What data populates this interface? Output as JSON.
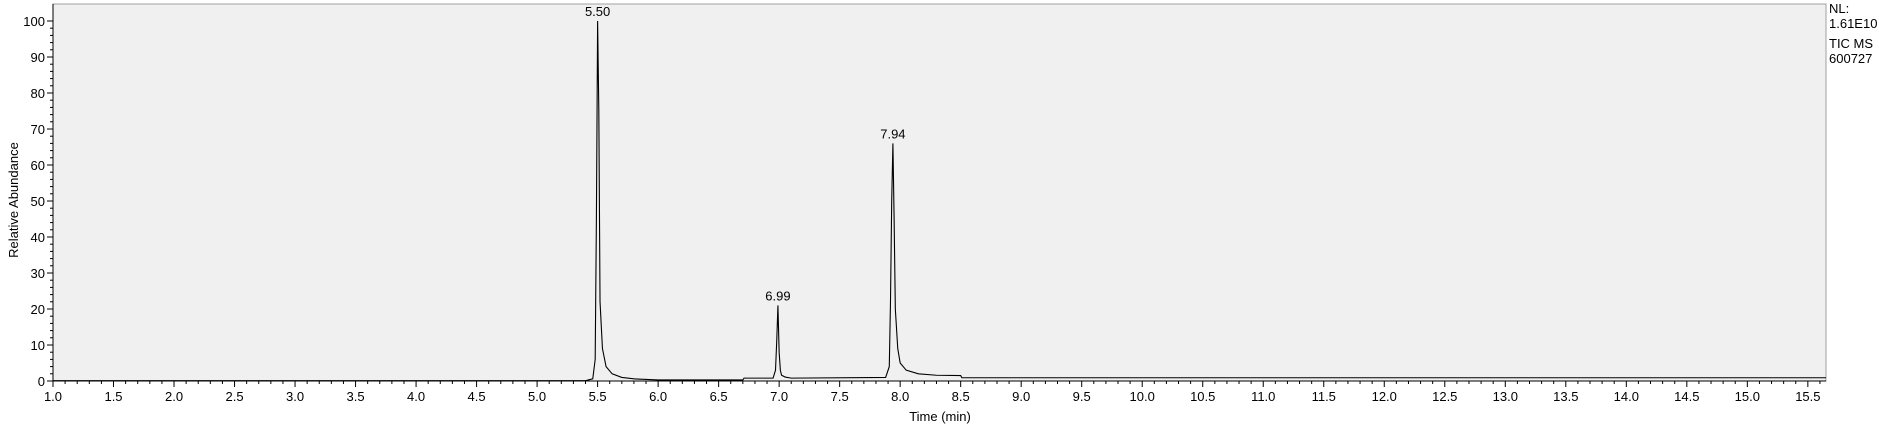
{
  "chart_data": {
    "type": "line",
    "xlabel": "Time (min)",
    "ylabel": "Relative Abundance",
    "xlim": [
      1.0,
      15.65
    ],
    "ylim": [
      0,
      100
    ],
    "x_ticks": [
      "1.0",
      "1.5",
      "2.0",
      "2.5",
      "3.0",
      "3.5",
      "4.0",
      "4.5",
      "5.0",
      "5.5",
      "6.0",
      "6.5",
      "7.0",
      "7.5",
      "8.0",
      "8.5",
      "9.0",
      "9.5",
      "10.0",
      "10.5",
      "11.0",
      "11.5",
      "12.0",
      "12.5",
      "13.0",
      "13.5",
      "14.0",
      "14.5",
      "15.0",
      "15.5"
    ],
    "y_ticks": [
      "0",
      "10",
      "20",
      "30",
      "40",
      "50",
      "60",
      "70",
      "80",
      "90",
      "100"
    ],
    "info": [
      "NL:",
      "1.61E10",
      "TIC MS",
      "600727"
    ],
    "peaks": [
      {
        "rt": 5.5,
        "label": "5.50",
        "height": 100
      },
      {
        "rt": 6.99,
        "label": "6.99",
        "height": 21
      },
      {
        "rt": 7.94,
        "label": "7.94",
        "height": 66
      }
    ],
    "series": [
      {
        "x": [
          1.0,
          5.4,
          5.46,
          5.48,
          5.49,
          5.5,
          5.51,
          5.52,
          5.54,
          5.57,
          5.62,
          5.7,
          5.8,
          6.0,
          6.7,
          6.71,
          6.95,
          6.97,
          6.98,
          6.99,
          7.0,
          7.01,
          7.02,
          7.05,
          7.1,
          7.88,
          7.91,
          7.92,
          7.93,
          7.94,
          7.95,
          7.96,
          7.98,
          8.0,
          8.05,
          8.15,
          8.3,
          8.5,
          8.51,
          15.65
        ],
        "y": [
          0.1,
          0.1,
          0.6,
          6,
          45,
          100,
          75,
          22,
          9,
          4,
          2,
          1,
          0.6,
          0.3,
          0.3,
          0.8,
          0.8,
          3,
          11,
          21,
          8,
          3,
          1.6,
          1.1,
          0.8,
          1.0,
          4,
          22,
          50,
          66,
          45,
          20,
          9,
          5,
          3,
          2,
          1.6,
          1.5,
          0.9,
          0.9
        ]
      }
    ]
  }
}
